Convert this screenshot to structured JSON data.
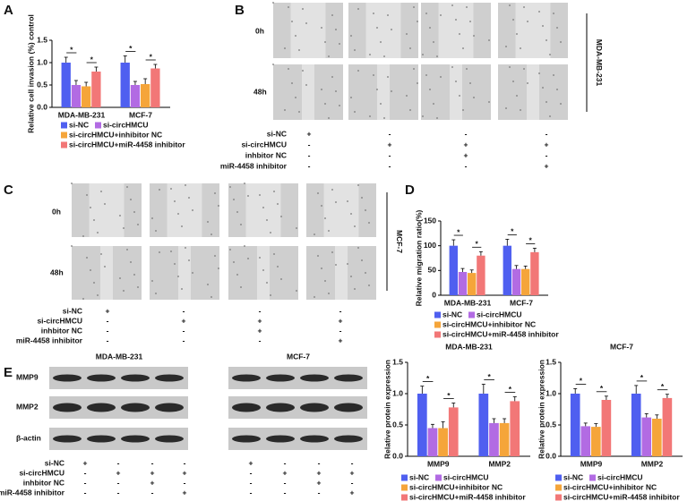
{
  "chart_data": [
    {
      "type": "bar",
      "ylabel": "Relative cell invasion (%) control",
      "categories": [
        "MDA-MB-231",
        "MCF-7"
      ],
      "ylim": [
        0,
        1.5
      ],
      "yticks": [
        {
          "value": 0,
          "label": "0.0"
        },
        {
          "value": 0.5,
          "label": "0.5"
        },
        {
          "value": 1,
          "label": "1.0"
        },
        {
          "value": 1.5,
          "label": "1.5"
        }
      ],
      "significance": [
        "*",
        "*",
        "*",
        "*"
      ],
      "series": [
        {
          "name": "si-NC",
          "color": "#4f5ff0",
          "values": [
            1.0,
            1.0
          ],
          "errors": [
            0.12,
            0.15
          ]
        },
        {
          "name": "si-circHMCU",
          "color": "#b26be3",
          "values": [
            0.5,
            0.5
          ],
          "errors": [
            0.1,
            0.08
          ]
        },
        {
          "name": "si-circHMCU+inhibitor NC",
          "color": "#f5a53a",
          "values": [
            0.47,
            0.52
          ],
          "errors": [
            0.09,
            0.12
          ]
        },
        {
          "name": "si-circHMCU+miR-4458 inhibitor",
          "color": "#f27777",
          "values": [
            0.8,
            0.87
          ],
          "errors": [
            0.1,
            0.09
          ]
        }
      ]
    },
    {
      "type": "bar",
      "ylabel": "Relative migration ratio(%)",
      "categories": [
        "MDA-MB-231",
        "MCF-7"
      ],
      "ylim": [
        0,
        150
      ],
      "yticks": [
        0,
        50,
        100,
        150
      ],
      "significance": [
        "*",
        "*",
        "*",
        "*"
      ],
      "series": [
        {
          "name": "si-NC",
          "color": "#4f5ff0",
          "values": [
            100,
            100
          ],
          "errors": [
            12,
            13
          ]
        },
        {
          "name": "si-circHMCU",
          "color": "#b26be3",
          "values": [
            47,
            53
          ],
          "errors": [
            7,
            7
          ]
        },
        {
          "name": "si-circHMCU+inhibitor NC",
          "color": "#f5a53a",
          "values": [
            45,
            53
          ],
          "errors": [
            6,
            6
          ]
        },
        {
          "name": "si-circHMCU+miR-4458 inhibitor",
          "color": "#f27777",
          "values": [
            80,
            87
          ],
          "errors": [
            8,
            8
          ]
        }
      ]
    },
    {
      "type": "bar",
      "title": "MDA-MB-231",
      "ylabel": "Relative protein expression",
      "categories": [
        "MMP9",
        "MMP2"
      ],
      "ylim": [
        0,
        1.5
      ],
      "yticks": [
        {
          "value": 0,
          "label": "0.0"
        },
        {
          "value": 0.5,
          "label": "0.5"
        },
        {
          "value": 1,
          "label": "1.0"
        },
        {
          "value": 1.5,
          "label": "1.5"
        }
      ],
      "significance": [
        "*",
        "*",
        "*",
        "*"
      ],
      "series": [
        {
          "name": "si-NC",
          "color": "#4f5ff0",
          "values": [
            1.0,
            1.0
          ],
          "errors": [
            0.12,
            0.15
          ]
        },
        {
          "name": "si-circHMCU",
          "color": "#b26be3",
          "values": [
            0.45,
            0.53
          ],
          "errors": [
            0.06,
            0.07
          ]
        },
        {
          "name": "si-circHMCU+inhibitor NC",
          "color": "#f5a53a",
          "values": [
            0.45,
            0.53
          ],
          "errors": [
            0.1,
            0.07
          ]
        },
        {
          "name": "si-circHMCU+miR-4458 inhibitor",
          "color": "#f27777",
          "values": [
            0.78,
            0.88
          ],
          "errors": [
            0.07,
            0.07
          ]
        }
      ]
    },
    {
      "type": "bar",
      "title": "MCF-7",
      "ylabel": "Relative protein expression",
      "categories": [
        "MMP9",
        "MMP2"
      ],
      "ylim": [
        0,
        1.5
      ],
      "yticks": [
        {
          "value": 0,
          "label": "0.0"
        },
        {
          "value": 0.5,
          "label": "0.5"
        },
        {
          "value": 1,
          "label": "1.0"
        },
        {
          "value": 1.5,
          "label": "1.5"
        }
      ],
      "significance": [
        "*",
        "*",
        "*",
        "*"
      ],
      "series": [
        {
          "name": "si-NC",
          "color": "#4f5ff0",
          "values": [
            1.0,
            1.0
          ],
          "errors": [
            0.08,
            0.13
          ]
        },
        {
          "name": "si-circHMCU",
          "color": "#b26be3",
          "values": [
            0.48,
            0.62
          ],
          "errors": [
            0.05,
            0.06
          ]
        },
        {
          "name": "si-circHMCU+inhibitor NC",
          "color": "#f5a53a",
          "values": [
            0.47,
            0.6
          ],
          "errors": [
            0.05,
            0.06
          ]
        },
        {
          "name": "si-circHMCU+miR-4458 inhibitor",
          "color": "#f27777",
          "values": [
            0.9,
            0.93
          ],
          "errors": [
            0.06,
            0.06
          ]
        }
      ]
    }
  ],
  "panels": {
    "letters": [
      "A",
      "B",
      "C",
      "D",
      "E"
    ],
    "B": {
      "rows": [
        "0h",
        "48h"
      ],
      "cell_line": "MDA-MB-231"
    },
    "C": {
      "rows": [
        "0h",
        "48h"
      ],
      "cell_line": "MCF-7"
    },
    "E": {
      "blot_titles": [
        "MDA-MB-231",
        "MCF-7"
      ],
      "proteins": [
        "MMP9",
        "MMP2",
        "β-actin"
      ]
    },
    "tables": [
      {
        "labels": [
          "si-NC",
          "si-circHMCU",
          "inhbitor NC",
          "miR-4458 inhibitor"
        ],
        "marks": [
          [
            "+",
            "-",
            "-",
            "-"
          ],
          [
            "-",
            "+",
            "+",
            "+"
          ],
          [
            "-",
            "-",
            "+",
            "-"
          ],
          [
            "-",
            "-",
            "-",
            "+"
          ]
        ]
      },
      {
        "labels": [
          "si-NC",
          "si-circHMCU",
          "inhbitor NC",
          "miR-4458 inhibitor"
        ],
        "marks": [
          [
            "+",
            "-",
            "-",
            "-"
          ],
          [
            "-",
            "+",
            "+",
            "+"
          ],
          [
            "-",
            "-",
            "+",
            "-"
          ],
          [
            "-",
            "-",
            "-",
            "+"
          ]
        ]
      },
      {
        "labels": [
          "si-NC",
          "si-circHMCU",
          "inhbitor NC",
          "miR-4458 inhibitor"
        ],
        "marks": [
          [
            "+",
            "-",
            "-",
            "-"
          ],
          [
            "-",
            "+",
            "+",
            "+"
          ],
          [
            "-",
            "-",
            "+",
            "-"
          ],
          [
            "-",
            "-",
            "-",
            "+"
          ]
        ]
      },
      {
        "marks": [
          [
            "+",
            "-",
            "-",
            "-"
          ],
          [
            "-",
            "+",
            "+",
            "+"
          ],
          [
            "-",
            "-",
            "+",
            "-"
          ],
          [
            "-",
            "-",
            "-",
            "+"
          ]
        ]
      }
    ]
  }
}
